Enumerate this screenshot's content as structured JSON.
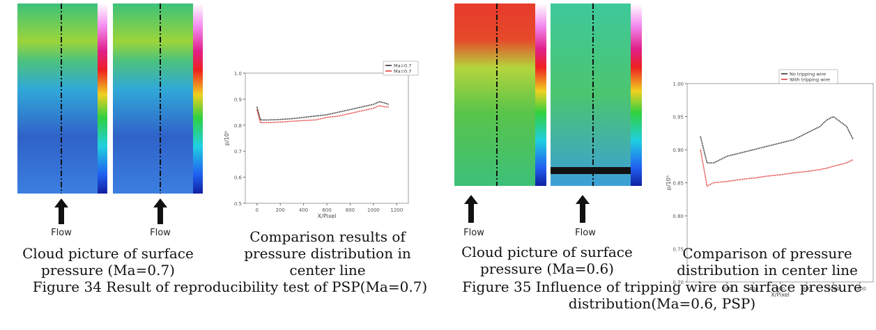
{
  "figures": [
    {
      "image_caption": "Cloud picture of surface pressure (Ma=0.7)",
      "flow_labels": [
        "Flow",
        "Flow"
      ],
      "chart_caption": "Comparison results of pressure distribution in center line",
      "caption": "Figure 34 Result of reproducibility test of PSP(Ma=0.7)",
      "chart": {
        "type": "line",
        "xlabel": "X/Pixel",
        "ylabel": "p/10⁵",
        "x": [
          0,
          30,
          100,
          200,
          300,
          400,
          500,
          600,
          700,
          800,
          900,
          1000,
          1050,
          1100,
          1130
        ],
        "series": [
          {
            "name": "Ma=0.7",
            "color": "#222222",
            "values": [
              0.87,
              0.82,
              0.82,
              0.822,
              0.825,
              0.83,
              0.835,
              0.84,
              0.85,
              0.86,
              0.87,
              0.88,
              0.89,
              0.885,
              0.88
            ]
          },
          {
            "name": "Ma=0.7",
            "color": "#e03030",
            "values": [
              0.86,
              0.81,
              0.81,
              0.812,
              0.815,
              0.818,
              0.82,
              0.83,
              0.835,
              0.845,
              0.855,
              0.865,
              0.875,
              0.87,
              0.87
            ]
          }
        ],
        "xlim": [
          -100,
          1300
        ],
        "xticks": [
          0,
          200,
          400,
          600,
          800,
          1000,
          1200
        ],
        "ylim": [
          0.5,
          1.0
        ],
        "yticks": [
          0.5,
          0.6,
          0.7,
          0.8,
          0.9,
          {
            "value": 1.0,
            "label": "1.0"
          }
        ]
      }
    },
    {
      "image_caption": "Cloud picture of surface pressure (Ma=0.6)",
      "flow_labels": [
        "Flow",
        "Flow"
      ],
      "chart_caption": "Comparison of pressure distribution in center line",
      "caption": "Figure 35 Influence of tripping wire on surface pressure distribution(Ma=0.6, PSP)",
      "chart": {
        "type": "line",
        "xlabel": "X/Pixel",
        "ylabel": "p/10⁵",
        "x": [
          0,
          50,
          100,
          200,
          300,
          400,
          500,
          600,
          700,
          800,
          900,
          950,
          1000,
          1100,
          1150
        ],
        "series": [
          {
            "name": "No tripping wire",
            "color": "#222222",
            "values": [
              0.92,
              0.88,
              0.88,
              0.89,
              0.895,
              0.9,
              0.905,
              0.91,
              0.915,
              0.925,
              0.935,
              0.945,
              0.95,
              0.935,
              0.915
            ]
          },
          {
            "name": "With tripping wire",
            "color": "#e03030",
            "values": [
              0.9,
              0.845,
              0.85,
              0.852,
              0.855,
              0.857,
              0.86,
              0.862,
              0.865,
              0.867,
              0.87,
              0.872,
              0.875,
              0.88,
              0.885
            ]
          }
        ],
        "xlim": [
          -100,
          1300
        ],
        "xticks": [
          0,
          200,
          400,
          600,
          800,
          1000,
          1200
        ],
        "ylim": [
          0.7,
          1.0
        ],
        "yticks": [
          {
            "value": 0.7,
            "label": "0.70"
          },
          0.75,
          {
            "value": 0.8,
            "label": "0.80"
          },
          0.85,
          {
            "value": 0.9,
            "label": "0.90"
          },
          0.95,
          {
            "value": 1.0,
            "label": "1.00"
          }
        ]
      }
    }
  ]
}
